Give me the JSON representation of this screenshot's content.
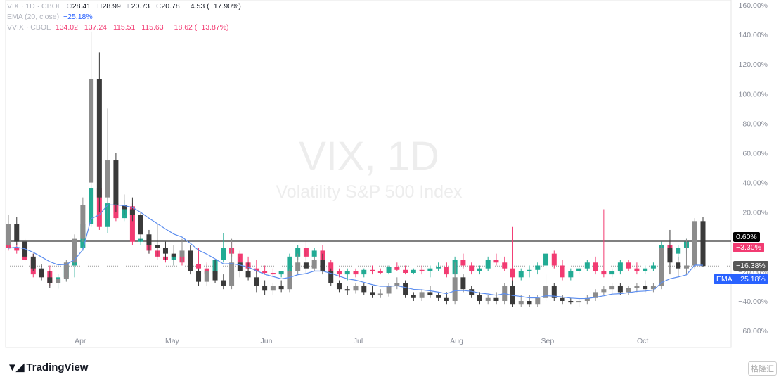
{
  "legend": {
    "vix": {
      "label": "VIX · 1D · CBOE",
      "o_key": "O",
      "o": "28.41",
      "h_key": "H",
      "h": "28.99",
      "l_key": "L",
      "l": "20.73",
      "c_key": "C",
      "c": "20.78",
      "change": "−4.53 (−17.90%)"
    },
    "ema": {
      "label": "EMA (20, close)",
      "value": "−25.18%"
    },
    "vvix": {
      "label": "VVIX · CBOE",
      "o": "134.02",
      "h": "137.24",
      "l": "115.51",
      "c": "115.63",
      "change": "−18.62 (−13.87%)"
    }
  },
  "watermark": {
    "title": "VIX, 1D",
    "subtitle": "Volatility S&P 500 Index"
  },
  "price_tags": {
    "line": "0.60%",
    "vvix": "−3.30%",
    "vix": "−16.38%",
    "ema_label": "EMA",
    "ema": "−25.18%"
  },
  "colors": {
    "vix_up": "#8c8c8c",
    "vix_down": "#3a3a3a",
    "vvix_up": "#22ab94",
    "vvix_down": "#f23b72",
    "ema": "#5b8def",
    "hline": "#000000"
  },
  "brand": {
    "name": "TradingView",
    "corner_mark": "格隆汇"
  },
  "chart_data": {
    "type": "candlestick",
    "y_scale": "percent",
    "ylim": [
      -65,
      160
    ],
    "y_ticks": [
      "160.00%",
      "140.00%",
      "120.00%",
      "100.00%",
      "80.00%",
      "60.00%",
      "40.00%",
      "20.00%",
      "−20.00%",
      "−40.00%",
      "−60.00%"
    ],
    "y_tick_values": [
      160,
      140,
      120,
      100,
      80,
      60,
      40,
      20,
      -20,
      -40,
      -60
    ],
    "x_ticks": [
      {
        "label": "Apr",
        "index": 8.7
      },
      {
        "label": "May",
        "index": 19.8
      },
      {
        "label": "Jun",
        "index": 31.2
      },
      {
        "label": "Jul",
        "index": 42.3
      },
      {
        "label": "Aug",
        "index": 54.2
      },
      {
        "label": "Sep",
        "index": 65.2
      },
      {
        "label": "Oct",
        "index": 76.7
      }
    ],
    "horizontal_line": 0.6,
    "last_vix": -16.38,
    "series": [
      {
        "name": "VIX",
        "ohlc": [
          [
            -2,
            18,
            -5,
            12
          ],
          [
            12,
            17,
            -2,
            0
          ],
          [
            0,
            2,
            -12,
            -10
          ],
          [
            -10,
            -8,
            -20,
            -18
          ],
          [
            -18,
            -15,
            -26,
            -24
          ],
          [
            -24,
            -20,
            -31,
            -28
          ],
          [
            -28,
            -22,
            -31,
            -25
          ],
          [
            -25,
            -12,
            -27,
            -14
          ],
          [
            -14,
            5,
            -16,
            2
          ],
          [
            2,
            30,
            0,
            25
          ],
          [
            40,
            142,
            38,
            110
          ],
          [
            110,
            128,
            20,
            30
          ],
          [
            30,
            90,
            15,
            55
          ],
          [
            55,
            60,
            20,
            25
          ],
          [
            25,
            32,
            18,
            22
          ],
          [
            22,
            30,
            14,
            18
          ],
          [
            18,
            20,
            0,
            5
          ],
          [
            5,
            8,
            -8,
            -2
          ],
          [
            -2,
            12,
            -10,
            -4
          ],
          [
            -4,
            0,
            -12,
            -8
          ],
          [
            -8,
            -2,
            -16,
            -10
          ],
          [
            -10,
            2,
            -14,
            -6
          ],
          [
            -6,
            -2,
            -22,
            -20
          ],
          [
            -20,
            -18,
            -30,
            -27
          ],
          [
            -27,
            -15,
            -30,
            -20
          ],
          [
            -20,
            -12,
            -28,
            -26
          ],
          [
            -26,
            -22,
            -32,
            -30
          ],
          [
            -30,
            2,
            -32,
            -14
          ],
          [
            -14,
            -10,
            -24,
            -20
          ],
          [
            -20,
            -14,
            -26,
            -24
          ],
          [
            -24,
            -20,
            -34,
            -30
          ],
          [
            -30,
            -26,
            -36,
            -33
          ],
          [
            -33,
            -28,
            -36,
            -30
          ],
          [
            -30,
            -26,
            -34,
            -32
          ],
          [
            -32,
            -18,
            -34,
            -20
          ],
          [
            -20,
            -8,
            -22,
            -14
          ],
          [
            -14,
            -6,
            -22,
            -18
          ],
          [
            -18,
            -10,
            -20,
            -12
          ],
          [
            -12,
            -8,
            -22,
            -20
          ],
          [
            -20,
            -18,
            -30,
            -28
          ],
          [
            -28,
            -26,
            -34,
            -32
          ],
          [
            -32,
            -30,
            -36,
            -33
          ],
          [
            -33,
            -28,
            -35,
            -30
          ],
          [
            -30,
            -28,
            -36,
            -34
          ],
          [
            -34,
            -30,
            -38,
            -36
          ],
          [
            -36,
            -32,
            -38,
            -35
          ],
          [
            -35,
            -28,
            -37,
            -30
          ],
          [
            -30,
            -24,
            -32,
            -28
          ],
          [
            -28,
            -26,
            -38,
            -36
          ],
          [
            -36,
            -34,
            -40,
            -38
          ],
          [
            -38,
            -32,
            -40,
            -34
          ],
          [
            -34,
            -30,
            -38,
            -36
          ],
          [
            -36,
            -34,
            -40,
            -38
          ],
          [
            -38,
            -34,
            -42,
            -40
          ],
          [
            -40,
            -14,
            -42,
            -24
          ],
          [
            -24,
            -22,
            -34,
            -32
          ],
          [
            -32,
            -30,
            -38,
            -36
          ],
          [
            -36,
            -34,
            -42,
            -40
          ],
          [
            -40,
            -36,
            -42,
            -38
          ],
          [
            -38,
            -34,
            -42,
            -40
          ],
          [
            -40,
            -28,
            -42,
            -30
          ],
          [
            -30,
            -26,
            -44,
            -42
          ],
          [
            -42,
            -36,
            -44,
            -40
          ],
          [
            -40,
            -36,
            -44,
            -42
          ],
          [
            -42,
            -36,
            -44,
            -38
          ],
          [
            -38,
            -22,
            -40,
            -30
          ],
          [
            -30,
            -28,
            -40,
            -38
          ],
          [
            -38,
            -36,
            -42,
            -40
          ],
          [
            -40,
            -38,
            -42,
            -41
          ],
          [
            -41,
            -38,
            -44,
            -40
          ],
          [
            -40,
            -36,
            -42,
            -38
          ],
          [
            -38,
            -32,
            -40,
            -34
          ],
          [
            -34,
            -30,
            -36,
            -32
          ],
          [
            -32,
            -28,
            -36,
            -30
          ],
          [
            -30,
            -28,
            -36,
            -34
          ],
          [
            -34,
            -30,
            -36,
            -31
          ],
          [
            -31,
            -28,
            -34,
            -30
          ],
          [
            -30,
            -26,
            -34,
            -32
          ],
          [
            -32,
            -28,
            -34,
            -30
          ],
          [
            -30,
            -2,
            -32,
            -4
          ],
          [
            -4,
            8,
            -22,
            -14
          ],
          [
            -14,
            -10,
            -24,
            -18
          ],
          [
            -18,
            2,
            -22,
            -16
          ],
          [
            -16,
            16,
            -18,
            14
          ],
          [
            14,
            17,
            -17,
            -16.38
          ]
        ]
      },
      {
        "name": "VVIX",
        "ohlc": [
          [
            -2,
            4,
            -6,
            -4
          ],
          [
            -4,
            -1,
            -8,
            -6
          ],
          [
            -6,
            -4,
            -14,
            -12
          ],
          [
            -12,
            -8,
            -24,
            -22
          ],
          [
            -22,
            -18,
            -26,
            -20
          ],
          [
            -20,
            -16,
            -30,
            -28
          ],
          [
            -28,
            -22,
            -32,
            -24
          ],
          [
            -24,
            -14,
            -26,
            -16
          ],
          [
            -16,
            -2,
            -24,
            -4
          ],
          [
            -4,
            14,
            -6,
            12
          ],
          [
            12,
            38,
            10,
            36
          ],
          [
            36,
            42,
            8,
            10
          ],
          [
            10,
            30,
            6,
            26
          ],
          [
            26,
            30,
            14,
            16
          ],
          [
            16,
            28,
            14,
            24
          ],
          [
            24,
            26,
            -2,
            0
          ],
          [
            0,
            4,
            -2,
            2
          ],
          [
            2,
            4,
            -8,
            -6
          ],
          [
            -6,
            -2,
            -12,
            -10
          ],
          [
            -10,
            -6,
            -14,
            -12
          ],
          [
            -12,
            -8,
            -16,
            -9
          ],
          [
            -9,
            -4,
            -16,
            -14
          ],
          [
            -14,
            -12,
            -18,
            -15
          ],
          [
            -15,
            -4,
            -20,
            -18
          ],
          [
            -18,
            -14,
            -26,
            -22
          ],
          [
            -22,
            -14,
            -26,
            -12
          ],
          [
            -12,
            6,
            -14,
            -4
          ],
          [
            -4,
            0,
            -10,
            -8
          ],
          [
            -8,
            -6,
            -16,
            -14
          ],
          [
            -14,
            -10,
            -20,
            -18
          ],
          [
            -18,
            -12,
            -22,
            -20
          ],
          [
            -20,
            -16,
            -22,
            -21
          ],
          [
            -21,
            -18,
            -24,
            -22
          ],
          [
            -22,
            -20,
            -24,
            -20
          ],
          [
            -20,
            -8,
            -22,
            -10
          ],
          [
            -10,
            -2,
            -12,
            -4
          ],
          [
            -4,
            0,
            -12,
            -10
          ],
          [
            -10,
            -4,
            -14,
            -6
          ],
          [
            -6,
            -2,
            -16,
            -14
          ],
          [
            -14,
            -12,
            -22,
            -20
          ],
          [
            -20,
            -18,
            -24,
            -22
          ],
          [
            -22,
            -18,
            -26,
            -20
          ],
          [
            -20,
            -18,
            -24,
            -22
          ],
          [
            -22,
            -18,
            -24,
            -19
          ],
          [
            -19,
            -16,
            -22,
            -20
          ],
          [
            -20,
            -18,
            -22,
            -21
          ],
          [
            -21,
            -16,
            -22,
            -17
          ],
          [
            -17,
            -14,
            -20,
            -19
          ],
          [
            -19,
            -16,
            -22,
            -21
          ],
          [
            -21,
            -18,
            -22,
            -19
          ],
          [
            -19,
            -16,
            -22,
            -20
          ],
          [
            -20,
            -16,
            -24,
            -18
          ],
          [
            -18,
            -14,
            -20,
            -17
          ],
          [
            -17,
            -14,
            -24,
            -22
          ],
          [
            -22,
            -10,
            -24,
            -12
          ],
          [
            -12,
            -8,
            -18,
            -16
          ],
          [
            -16,
            -14,
            -22,
            -20
          ],
          [
            -20,
            -16,
            -22,
            -18
          ],
          [
            -18,
            -10,
            -20,
            -12
          ],
          [
            -12,
            -8,
            -16,
            -14
          ],
          [
            -14,
            -10,
            -20,
            -18
          ],
          [
            -18,
            10,
            -26,
            -24
          ],
          [
            -24,
            -18,
            -26,
            -20
          ],
          [
            -20,
            -16,
            -24,
            -19
          ],
          [
            -19,
            -14,
            -22,
            -16
          ],
          [
            -16,
            -6,
            -18,
            -8
          ],
          [
            -8,
            -6,
            -18,
            -16
          ],
          [
            -16,
            -12,
            -26,
            -24
          ],
          [
            -24,
            -18,
            -26,
            -20
          ],
          [
            -20,
            -16,
            -22,
            -18
          ],
          [
            -18,
            -12,
            -20,
            -14
          ],
          [
            -14,
            -10,
            -22,
            -20
          ],
          [
            -20,
            22,
            -24,
            -22
          ],
          [
            -22,
            -18,
            -24,
            -20
          ],
          [
            -20,
            -12,
            -22,
            -14
          ],
          [
            -14,
            -12,
            -20,
            -18
          ],
          [
            -18,
            -14,
            -22,
            -20
          ],
          [
            -20,
            -16,
            -22,
            -18
          ],
          [
            -18,
            -14,
            -20,
            -16
          ],
          [
            -16,
            0,
            -18,
            -2
          ],
          [
            -2,
            0,
            -12,
            -8
          ],
          [
            -8,
            -2,
            -12,
            -4
          ],
          [
            -4,
            2,
            -8,
            0
          ],
          [
            0,
            14,
            -2,
            12
          ],
          [
            12,
            14,
            -4,
            -3.3
          ]
        ]
      }
    ],
    "ema_period": 20
  }
}
